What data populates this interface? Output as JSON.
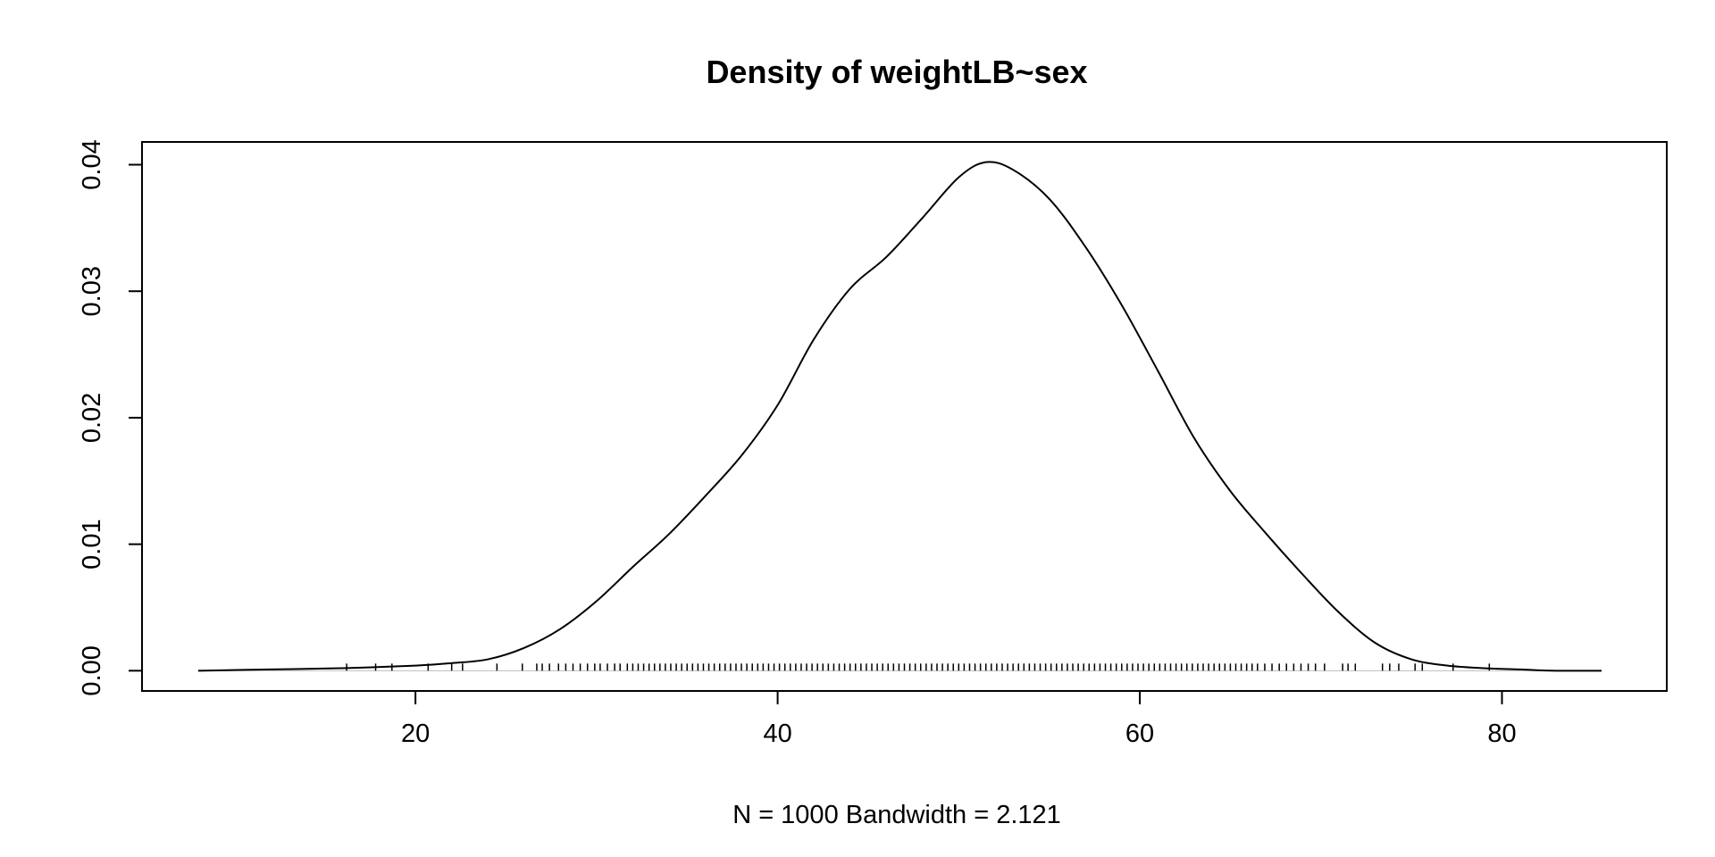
{
  "chart_data": {
    "type": "line",
    "title": "Density of weightLB~sex",
    "xlabel": "N = 1000   Bandwidth = 2.121",
    "ylabel": "",
    "xlim": [
      4.9,
      89.1
    ],
    "ylim": [
      -0.0016,
      0.0418
    ],
    "x_ticks": [
      20,
      40,
      60,
      80
    ],
    "x_tick_labels": [
      "20",
      "40",
      "60",
      "80"
    ],
    "y_ticks": [
      0.0,
      0.01,
      0.02,
      0.03,
      0.04
    ],
    "y_tick_labels": [
      "0.00",
      "0.01",
      "0.02",
      "0.03",
      "0.04"
    ],
    "grid": false,
    "legend": "none",
    "line_color": "#000000",
    "zero_line_color": "#bebebe",
    "series": [
      {
        "x": [
          8,
          12,
          16,
          20,
          22,
          24,
          26,
          28,
          30,
          32,
          34,
          36,
          38,
          40,
          42,
          44,
          46,
          48,
          50,
          51.5,
          53,
          55,
          57,
          59,
          61,
          63,
          65,
          67,
          69,
          71,
          73,
          75,
          77,
          79,
          81,
          83,
          85.5
        ],
        "y": [
          0.0,
          0.0001,
          0.0002,
          0.0004,
          0.0006,
          0.0009,
          0.0018,
          0.0033,
          0.0055,
          0.0082,
          0.0108,
          0.0138,
          0.017,
          0.021,
          0.0262,
          0.0302,
          0.0327,
          0.0358,
          0.039,
          0.0402,
          0.0396,
          0.0373,
          0.0335,
          0.0289,
          0.0237,
          0.0184,
          0.0142,
          0.0108,
          0.0076,
          0.0046,
          0.0022,
          0.0009,
          0.0004,
          0.0002,
          0.0001,
          0.0,
          0.0
        ]
      }
    ],
    "rug": [
      16.2,
      17.8,
      18.7,
      20.7,
      22.0,
      22.6,
      24.5,
      25.9,
      26.7,
      27.0,
      27.4,
      27.9,
      28.3,
      28.7,
      29.1,
      29.5,
      29.9,
      30.2,
      30.6,
      31.0,
      31.3,
      31.7,
      32.0,
      32.3,
      32.6,
      32.9,
      33.2,
      33.5,
      33.8,
      34.1,
      34.4,
      34.7,
      35.0,
      35.3,
      35.6,
      35.9,
      36.2,
      36.5,
      36.8,
      37.1,
      37.4,
      37.7,
      38.0,
      38.3,
      38.6,
      38.9,
      39.2,
      39.5,
      39.8,
      40.1,
      40.4,
      40.7,
      41.0,
      41.3,
      41.6,
      41.9,
      42.2,
      42.5,
      42.8,
      43.1,
      43.4,
      43.7,
      44.0,
      44.3,
      44.6,
      44.9,
      45.2,
      45.5,
      45.8,
      46.1,
      46.4,
      46.7,
      47.0,
      47.3,
      47.6,
      47.9,
      48.2,
      48.5,
      48.8,
      49.1,
      49.4,
      49.7,
      50.0,
      50.3,
      50.6,
      50.9,
      51.2,
      51.5,
      51.8,
      52.1,
      52.4,
      52.7,
      53.0,
      53.3,
      53.6,
      53.9,
      54.2,
      54.5,
      54.8,
      55.1,
      55.4,
      55.7,
      56.0,
      56.3,
      56.6,
      56.9,
      57.2,
      57.5,
      57.8,
      58.1,
      58.4,
      58.7,
      59.0,
      59.3,
      59.6,
      59.9,
      60.2,
      60.5,
      60.8,
      61.1,
      61.4,
      61.7,
      62.0,
      62.3,
      62.6,
      62.9,
      63.2,
      63.5,
      63.8,
      64.1,
      64.4,
      64.7,
      65.0,
      65.3,
      65.6,
      65.9,
      66.2,
      66.5,
      66.9,
      67.3,
      67.7,
      68.1,
      68.5,
      68.9,
      69.3,
      69.7,
      70.2,
      71.2,
      71.5,
      71.9,
      73.4,
      73.8,
      74.3,
      75.2,
      75.6,
      77.3,
      79.3
    ]
  }
}
